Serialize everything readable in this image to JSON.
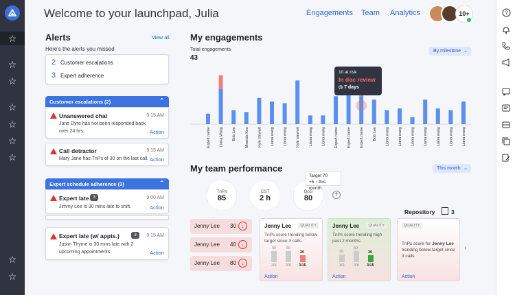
{
  "header": {
    "welcome": "Welcome to your launchpad, Julia",
    "nav": [
      "Engagements",
      "Team",
      "Analytics"
    ],
    "more_count": "10+"
  },
  "alerts": {
    "title": "Alerts",
    "view_all": "View all",
    "subtitle": "Here's the alerts you missed",
    "summary": [
      {
        "count": "2",
        "label": "Customer escalations"
      },
      {
        "count": "3",
        "label": "Expert adherence"
      }
    ],
    "groups": [
      {
        "header": "Customer escalations (2)",
        "items": [
          {
            "title": "Unanswered chat",
            "time": "9:15 AM",
            "desc1": "Jane Dyre has not been responded back",
            "desc2": "over 24 hrs.",
            "action": "Action"
          },
          {
            "title": "Call detractor",
            "time": "9:15 AM",
            "desc1": "Mary Jane has TnPs of 30 on the last call.",
            "desc2": "",
            "action": "Action"
          }
        ]
      },
      {
        "header": "Expert schedule adherence (3)",
        "items": [
          {
            "title": "Expert late",
            "badge": "3",
            "time": "9:00 AM",
            "desc1": "Jimmy Lee is 30 mins late to shift.",
            "desc2": "",
            "action": "Action"
          },
          {
            "title": "Expert late (w/ appts.)",
            "badge": "3",
            "time": "9:15 AM",
            "desc1": "Justin Thyme is 30 mins late with 2",
            "desc2": "upcoming appointments.",
            "action": "Action"
          }
        ]
      }
    ]
  },
  "engagements": {
    "title": "My engagements",
    "total_label": "Total engagements",
    "total_value": "43",
    "dropdown": "By milestone",
    "tooltip": {
      "line1": "10 at risk",
      "line2": "In doc review",
      "line3": "7 days"
    }
  },
  "chart_data": {
    "type": "bar",
    "categories": [
      "Expert name",
      "Liana Wang",
      "Bob Lee",
      "Miranda Ken",
      "Kyle stewart",
      "Liana wang",
      "Liana wang",
      "Kyle stewart",
      "Liana wang",
      "Liana wang",
      "Expert name",
      "Expert name",
      "Expert name",
      "Bob Lee",
      "Liana wang",
      "Liana wang",
      "Liana wang",
      "Liana wang",
      "Liana wang",
      "Liana wang",
      "Liana wang",
      "Liana wang"
    ],
    "series": [
      {
        "values": [
          3,
          10,
          4,
          3.5,
          7.5,
          6.5,
          6,
          12.5,
          2.5,
          2.5,
          8,
          10,
          8,
          7,
          4,
          4.5,
          2,
          7,
          4.5,
          4,
          6.5,
          9
        ]
      },
      {
        "values": [
          0,
          4,
          0,
          0,
          0,
          0,
          0,
          0,
          0,
          0,
          0,
          0,
          6,
          0,
          0,
          0,
          0,
          0,
          0,
          0,
          0,
          0
        ]
      }
    ],
    "colors": [
      "#5b8ff0",
      "#f07e7e"
    ]
  },
  "team": {
    "title": "My team performance",
    "dropdown": "This month",
    "metrics": [
      {
        "name": "TnPs",
        "value": "85",
        "color": "#3b73e0",
        "fraction": 0.85
      },
      {
        "name": "CST",
        "value": "2 h",
        "color": "#f07e7e",
        "fraction": 0.7
      },
      {
        "name": "QoS",
        "value": "80",
        "color": "#3b73e0",
        "fraction": 0.8
      }
    ],
    "target_line1": "Target 70",
    "target_line2": "+5 ↑ this month",
    "people": [
      {
        "name": "Jenny Lee",
        "value": "30"
      },
      {
        "name": "Jenny Lee",
        "value": "40"
      },
      {
        "name": "Jenny Lee",
        "value": "80"
      }
    ],
    "quality_cards": [
      {
        "name": "Jenny Lee",
        "tag": "QUALITY",
        "desc": "TnPs score trending below target since 3 calls.",
        "bars": [
          {
            "label": "3/6",
            "value": "50"
          },
          {
            "label": "3/8",
            "value": "50"
          },
          {
            "label": "3/15",
            "value": "30"
          }
        ],
        "action": "Action"
      },
      {
        "name": "Jenny Lee",
        "tag": "QUALITY",
        "desc": "TnPs score trending high past 2 months.",
        "bars": [
          {
            "label": "3/6",
            "value": "30"
          },
          {
            "label": "3/8",
            "value": "50"
          },
          {
            "label": "3/15",
            "value": "30"
          }
        ],
        "action": "Action"
      }
    ],
    "repository": {
      "label": "Repository",
      "count": "3",
      "tag": "QUALITY",
      "desc_a": "TnPs score for ",
      "desc_name": "Jenny Lee",
      "desc_b": " trending below target since 3 calls.",
      "action": "Action"
    }
  }
}
